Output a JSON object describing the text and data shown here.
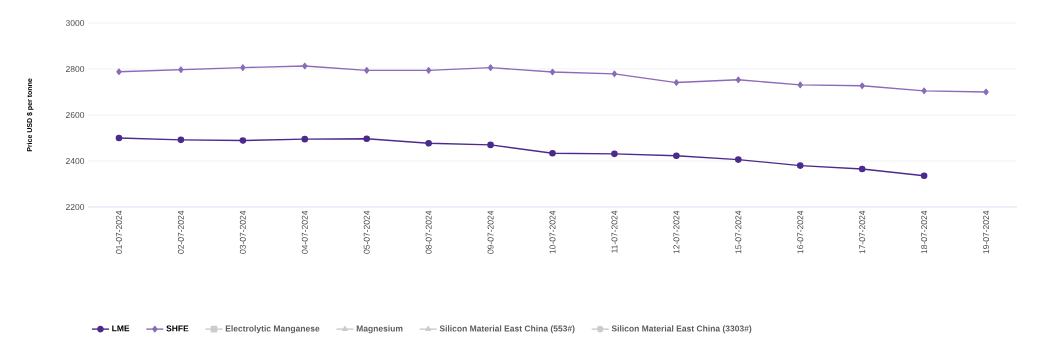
{
  "chart_data": {
    "type": "line",
    "ylabel": "Price USD $ per tonne",
    "categories": [
      "01-07-2024",
      "02-07-2024",
      "03-07-2024",
      "04-07-2024",
      "05-07-2024",
      "08-07-2024",
      "09-07-2024",
      "10-07-2024",
      "11-07-2024",
      "12-07-2024",
      "15-07-2024",
      "16-07-2024",
      "17-07-2024",
      "18-07-2024",
      "19-07-2024"
    ],
    "series": [
      {
        "name": "LME",
        "color": "#4b2a8c",
        "marker": "circle",
        "values": [
          2500,
          2492,
          2489,
          2495,
          2497,
          2477,
          2470,
          2434,
          2431,
          2423,
          2406,
          2380,
          2365,
          2336,
          null
        ]
      },
      {
        "name": "SHFE",
        "color": "#8a6bb8",
        "marker": "diamond",
        "values": [
          2788,
          2797,
          2806,
          2813,
          2794,
          2794,
          2806,
          2787,
          2779,
          2741,
          2753,
          2731,
          2727,
          2705,
          2700
        ]
      },
      {
        "name": "Electrolytic Manganese",
        "color": "#cccccc",
        "marker": "square",
        "values": [
          null,
          null,
          null,
          null,
          null,
          null,
          null,
          null,
          null,
          null,
          null,
          null,
          null,
          null,
          null
        ]
      },
      {
        "name": "Magnesium",
        "color": "#cccccc",
        "marker": "triangle",
        "values": [
          null,
          null,
          null,
          null,
          null,
          null,
          null,
          null,
          null,
          null,
          null,
          null,
          null,
          null,
          null
        ]
      },
      {
        "name": "Silicon Material East China (553#)",
        "color": "#cccccc",
        "marker": "triangle",
        "values": [
          null,
          null,
          null,
          null,
          null,
          null,
          null,
          null,
          null,
          null,
          null,
          null,
          null,
          null,
          null
        ]
      },
      {
        "name": "Silicon Material East China (3303#)",
        "color": "#cccccc",
        "marker": "circle",
        "values": [
          null,
          null,
          null,
          null,
          null,
          null,
          null,
          null,
          null,
          null,
          null,
          null,
          null,
          null,
          null
        ]
      }
    ],
    "ylim": [
      2200,
      3000
    ],
    "yticks": [
      2200,
      2400,
      2600,
      2800,
      3000
    ],
    "grid": "y",
    "legend": "bottom left",
    "line_style": "solid"
  }
}
